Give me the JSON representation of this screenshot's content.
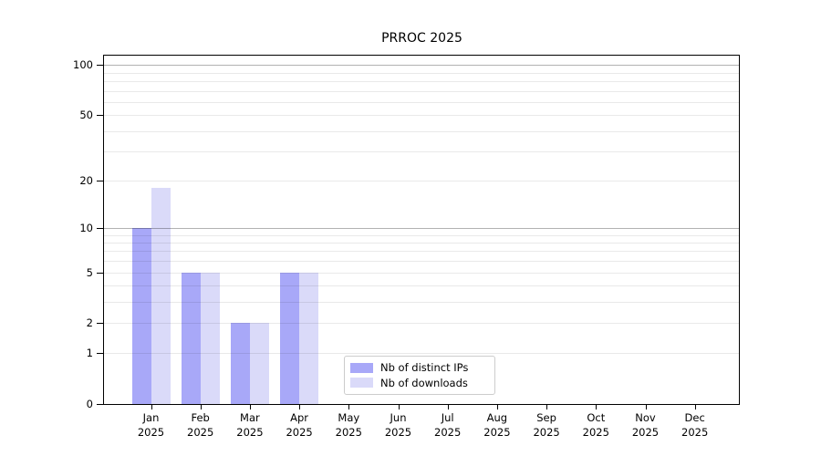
{
  "chart_data": {
    "type": "bar",
    "title": "PRROC 2025",
    "categories": [
      "Jan 2025",
      "Feb 2025",
      "Mar 2025",
      "Apr 2025",
      "May 2025",
      "Jun 2025",
      "Jul 2025",
      "Aug 2025",
      "Sep 2025",
      "Oct 2025",
      "Nov 2025",
      "Dec 2025"
    ],
    "x_tick_months": [
      "Jan",
      "Feb",
      "Mar",
      "Apr",
      "May",
      "Jun",
      "Jul",
      "Aug",
      "Sep",
      "Oct",
      "Nov",
      "Dec"
    ],
    "x_tick_year": "2025",
    "series": [
      {
        "name": "Nb of distinct IPs",
        "color": "#a8a8f8",
        "values": [
          10,
          5,
          2,
          5,
          0,
          0,
          0,
          0,
          0,
          0,
          0,
          0
        ]
      },
      {
        "name": "Nb of downloads",
        "color": "#dadaf9",
        "values": [
          18,
          5,
          2,
          5,
          0,
          0,
          0,
          0,
          0,
          0,
          0,
          0
        ]
      }
    ],
    "xlabel": "",
    "ylabel": "",
    "yscale": "log1p",
    "ylim": [
      0,
      114
    ],
    "yticks": [
      0,
      1,
      2,
      5,
      10,
      20,
      50,
      100
    ],
    "y_major_gridlines": [
      10,
      100
    ],
    "y_minor_gridlines": [
      1,
      2,
      3,
      4,
      5,
      6,
      7,
      8,
      9,
      20,
      30,
      40,
      50,
      60,
      70,
      80,
      90
    ],
    "grid": true,
    "legend_position": "lower center"
  },
  "colors": {
    "axis": "#000000",
    "major_grid": "#b3b3b3",
    "minor_grid": "#e9e9e9",
    "legend_border": "#cccccc",
    "background": "#ffffff"
  }
}
